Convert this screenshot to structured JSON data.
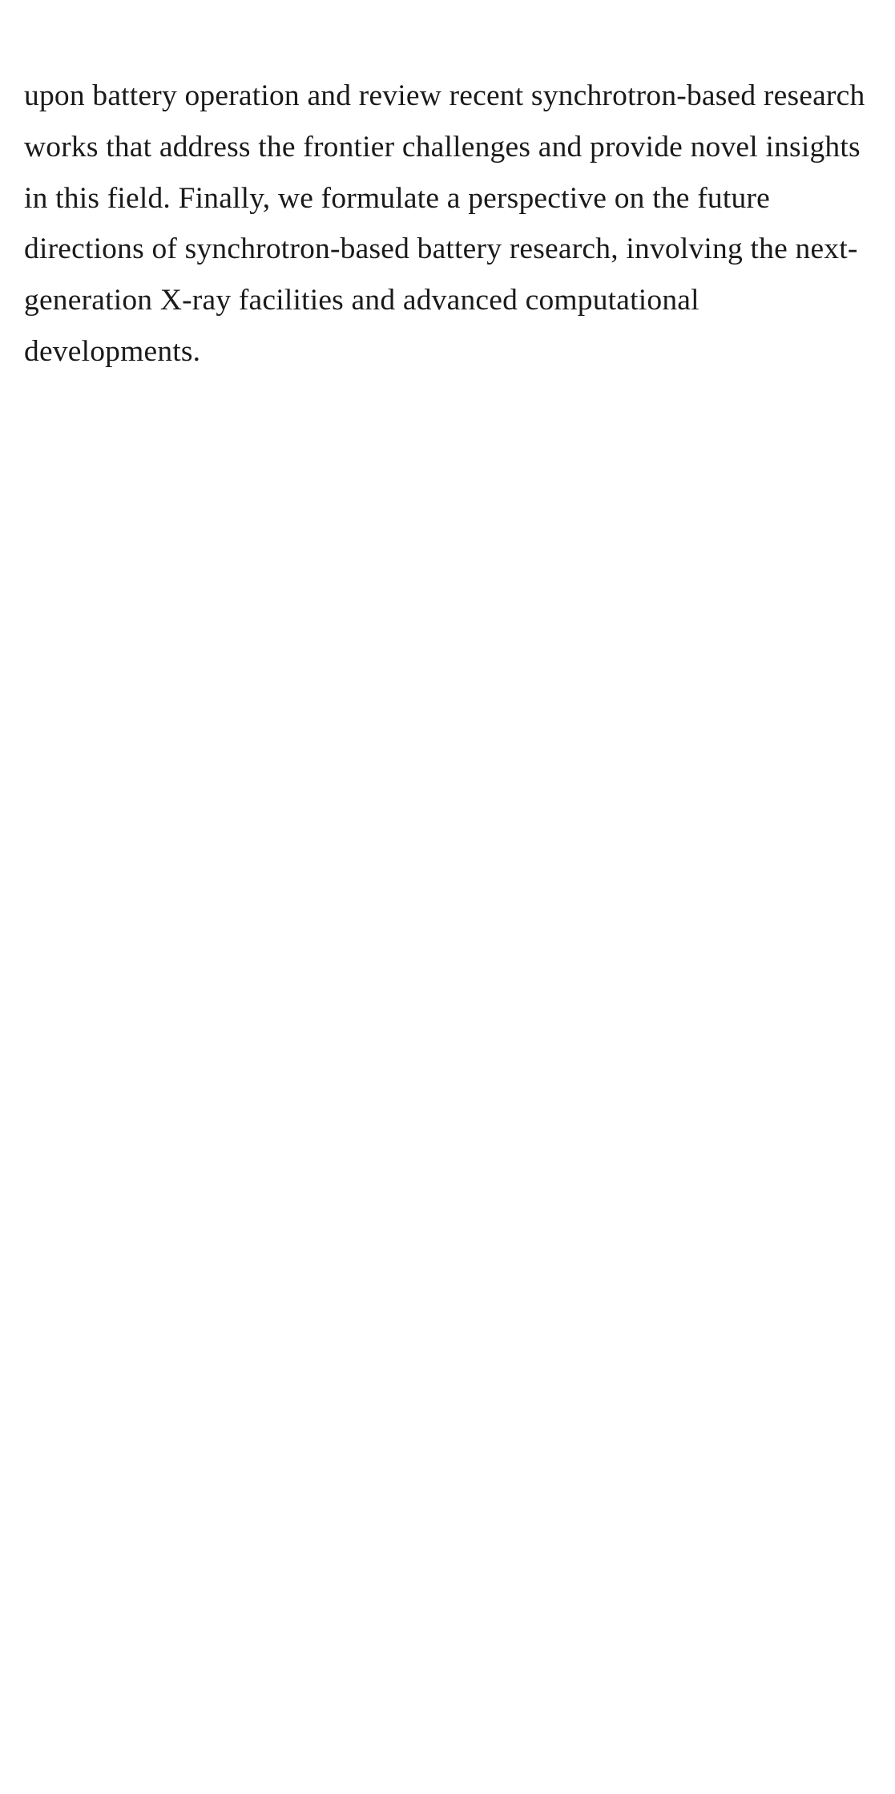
{
  "document": {
    "paragraph": "upon battery operation and review recent synchrotron-based research works that address the frontier challenges and provide novel insights in this field. Finally, we formulate a perspective on the future directions of synchrotron-based battery research, involving the next-generation X-ray facilities and advanced computational developments."
  }
}
